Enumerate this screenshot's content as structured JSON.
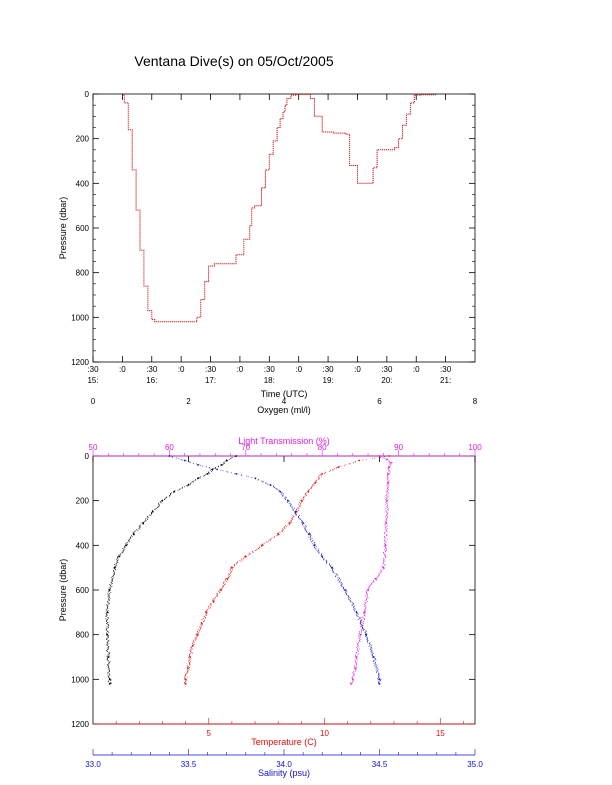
{
  "title": "Ventana Dive(s) on 05/Oct/2005",
  "chart_data": [
    {
      "type": "line",
      "title": "Ventana Dive(s) on 05/Oct/2005",
      "xlabel": "Time (UTC)",
      "ylabel": "Pressure (dbar)",
      "x_unit": "minutes since 15:00 UTC",
      "xlim": [
        30,
        420
      ],
      "ylim": [
        1200,
        0
      ],
      "y_ticks": [
        "0",
        "200",
        "400",
        "600",
        "800",
        "1000",
        "1200"
      ],
      "x_ticks_minutes": [
        ":30",
        ":0",
        ":30",
        ":0",
        ":30",
        ":0",
        ":30",
        ":0",
        ":30",
        ":0",
        ":30",
        ":0",
        ":30"
      ],
      "x_ticks_hours": [
        "15:",
        "16:",
        "17:",
        "18:",
        "19:",
        "20:",
        "21:"
      ],
      "color": "#d01010",
      "series": [
        {
          "x": [
            60,
            62,
            66,
            70,
            74,
            78,
            82,
            86,
            90,
            93,
            96,
            100,
            105,
            110,
            120,
            130,
            136,
            140,
            144,
            148,
            154,
            160,
            168,
            176,
            184,
            190,
            192,
            195,
            198,
            202,
            206,
            210,
            214,
            218,
            221,
            224,
            226,
            228,
            232,
            238,
            244,
            248,
            252,
            256,
            264,
            276,
            286,
            288,
            292,
            300,
            306,
            310,
            316,
            320,
            330,
            338,
            342,
            346,
            350,
            354,
            358,
            364,
            368,
            372,
            376,
            380
          ],
          "y": [
            5,
            40,
            160,
            340,
            520,
            700,
            860,
            970,
            1010,
            1020,
            1020,
            1020,
            1020,
            1020,
            1020,
            1020,
            1000,
            920,
            840,
            770,
            760,
            760,
            760,
            720,
            650,
            590,
            510,
            500,
            500,
            420,
            340,
            270,
            210,
            150,
            110,
            80,
            50,
            20,
            5,
            2,
            2,
            2,
            20,
            100,
            170,
            175,
            175,
            180,
            320,
            400,
            400,
            400,
            330,
            250,
            250,
            240,
            200,
            140,
            90,
            40,
            5,
            3,
            3,
            3,
            3,
            3
          ]
        }
      ]
    },
    {
      "type": "scatter",
      "ylabel": "Pressure (dbar)",
      "ylim": [
        1200,
        0
      ],
      "y_ticks": [
        "0",
        "200",
        "400",
        "600",
        "800",
        "1000",
        "1200"
      ],
      "axes": {
        "oxygen": {
          "label": "Oxygen (ml/l)",
          "range": [
            0,
            8
          ],
          "ticks": [
            "0",
            "2",
            "4",
            "6",
            "8"
          ],
          "color": "#000000"
        },
        "light_transmission": {
          "label": "Light Transmission (%)",
          "range": [
            50,
            100
          ],
          "ticks": [
            "50",
            "60",
            "70",
            "80",
            "90",
            "100"
          ],
          "color": "#e020e0"
        },
        "temperature": {
          "label": "Temperature (C)",
          "range": [
            0,
            16.5
          ],
          "ticks": [
            "5",
            "10",
            "15"
          ],
          "color": "#e01010"
        },
        "salinity": {
          "label": "Salinity (psu)",
          "range": [
            33.0,
            35.0
          ],
          "ticks": [
            "33.0",
            "33.5",
            "34.0",
            "34.5",
            "35.0"
          ],
          "color": "#1010d0"
        }
      },
      "series": [
        {
          "name": "Oxygen",
          "color": "#000000",
          "pressure": [
            0,
            20,
            40,
            60,
            80,
            100,
            130,
            160,
            200,
            250,
            300,
            350,
            400,
            450,
            500,
            600,
            700,
            800,
            900,
            1000,
            1020
          ],
          "values": [
            3.0,
            2.8,
            2.7,
            2.5,
            2.4,
            2.2,
            2.0,
            1.7,
            1.45,
            1.25,
            1.05,
            0.85,
            0.7,
            0.55,
            0.45,
            0.35,
            0.3,
            0.3,
            0.32,
            0.35,
            0.35
          ]
        },
        {
          "name": "Light Transmission",
          "color": "#e020e0",
          "pressure": [
            0,
            15,
            30,
            50,
            80,
            120,
            200,
            300,
            400,
            500,
            550,
            600,
            700,
            800,
            900,
            950,
            1000,
            1020
          ],
          "values": [
            87.5,
            88.5,
            89.0,
            88.8,
            88.7,
            88.6,
            88.5,
            88.4,
            88.3,
            88.0,
            87.0,
            86.0,
            85.5,
            85.0,
            84.5,
            84.3,
            84.0,
            83.8
          ]
        },
        {
          "name": "Temperature",
          "color": "#e01010",
          "pressure": [
            0,
            20,
            50,
            80,
            120,
            160,
            200,
            250,
            300,
            350,
            400,
            450,
            500,
            550,
            600,
            650,
            700,
            750,
            800,
            850,
            900,
            950,
            1000,
            1020
          ],
          "values": [
            12.8,
            11.5,
            10.6,
            9.9,
            9.6,
            9.3,
            9.0,
            8.8,
            8.5,
            8.0,
            7.3,
            6.6,
            6.0,
            5.8,
            5.5,
            5.2,
            4.9,
            4.7,
            4.5,
            4.3,
            4.2,
            4.1,
            4.0,
            4.0
          ]
        },
        {
          "name": "Salinity",
          "color": "#1010d0",
          "pressure": [
            0,
            20,
            40,
            60,
            80,
            100,
            130,
            160,
            200,
            250,
            300,
            350,
            400,
            450,
            500,
            600,
            700,
            800,
            900,
            1000,
            1020
          ],
          "values": [
            33.4,
            33.48,
            33.55,
            33.65,
            33.75,
            33.85,
            33.93,
            33.98,
            34.02,
            34.06,
            34.1,
            34.13,
            34.16,
            34.2,
            34.25,
            34.32,
            34.38,
            34.43,
            34.47,
            34.5,
            34.5
          ]
        }
      ]
    }
  ]
}
